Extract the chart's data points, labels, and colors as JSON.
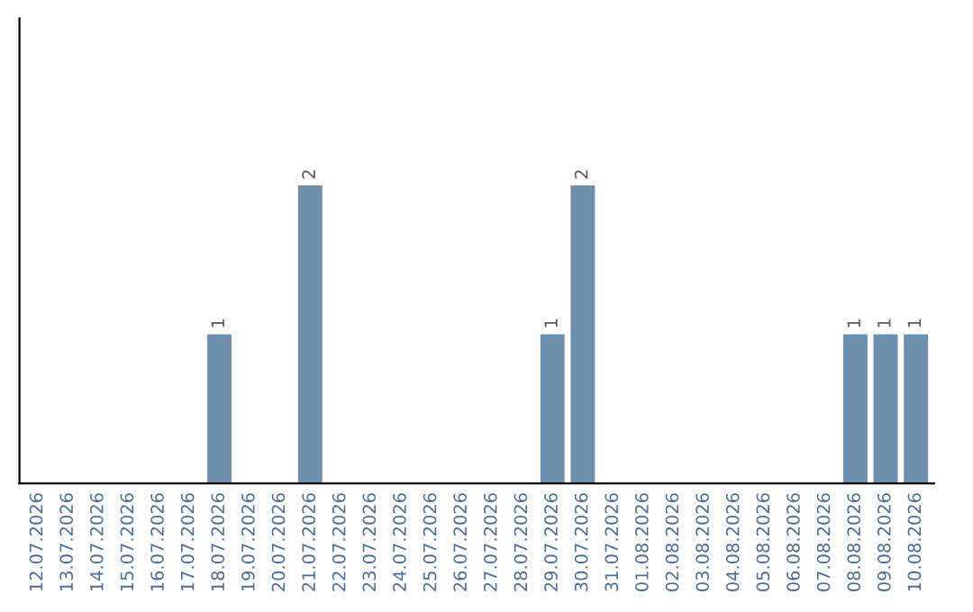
{
  "chart_data": {
    "type": "bar",
    "categories": [
      "12.07.2026",
      "13.07.2026",
      "14.07.2026",
      "15.07.2026",
      "16.07.2026",
      "17.07.2026",
      "18.07.2026",
      "19.07.2026",
      "20.07.2026",
      "21.07.2026",
      "22.07.2026",
      "23.07.2026",
      "24.07.2026",
      "25.07.2026",
      "26.07.2026",
      "27.07.2026",
      "28.07.2026",
      "29.07.2026",
      "30.07.2026",
      "31.07.2026",
      "01.08.2026",
      "02.08.2026",
      "03.08.2026",
      "04.08.2026",
      "05.08.2026",
      "06.08.2026",
      "07.08.2026",
      "08.08.2026",
      "09.08.2026",
      "10.08.2026"
    ],
    "values": [
      0,
      0,
      0,
      0,
      0,
      0,
      1,
      0,
      0,
      2,
      0,
      0,
      0,
      0,
      0,
      0,
      0,
      1,
      2,
      0,
      0,
      0,
      0,
      0,
      0,
      0,
      0,
      1,
      1,
      1
    ],
    "color": "#6d8fae",
    "value_labels": [
      null,
      null,
      null,
      null,
      null,
      null,
      "1",
      null,
      null,
      "2",
      null,
      null,
      null,
      null,
      null,
      null,
      null,
      "1",
      "2",
      null,
      null,
      null,
      null,
      null,
      null,
      null,
      null,
      "1",
      "1",
      "1"
    ],
    "grid": false,
    "legend": false
  }
}
